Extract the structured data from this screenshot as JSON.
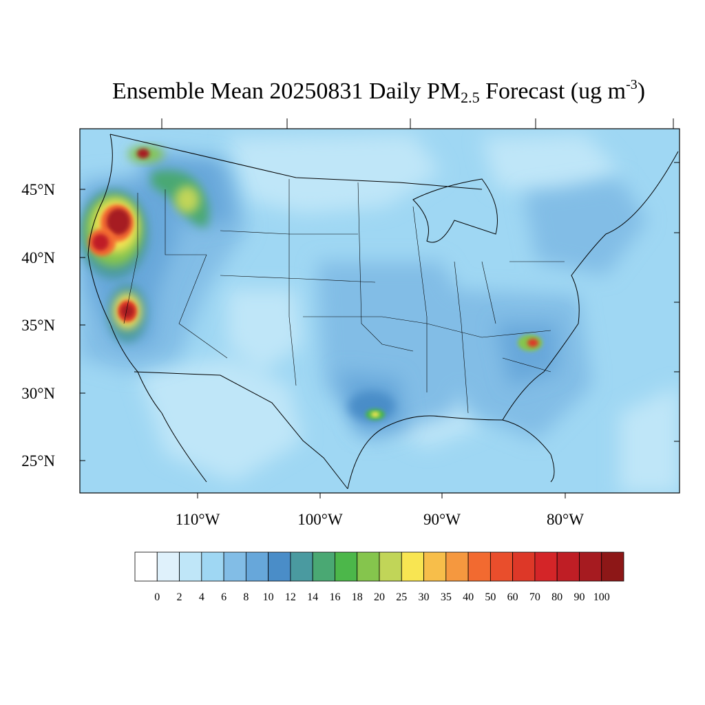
{
  "title": {
    "main": "Ensemble Mean 20250831 Daily PM",
    "subscript": "2.5",
    "after": " Forecast (ug m",
    "superscript": "-3",
    "close": ")"
  },
  "map": {
    "variable": "PM2.5",
    "region": "CONUS",
    "lat_range": [
      22.5,
      49
    ],
    "lon_range": [
      -119.5,
      -70.5
    ],
    "lat_labels": [
      "45°N",
      "40°N",
      "35°N",
      "30°N",
      "25°N"
    ],
    "lon_labels": [
      "110°W",
      "100°W",
      "90°W",
      "80°W"
    ]
  },
  "colorbar": {
    "labels": [
      "0",
      "2",
      "4",
      "6",
      "8",
      "10",
      "12",
      "14",
      "16",
      "18",
      "20",
      "25",
      "30",
      "35",
      "40",
      "50",
      "60",
      "70",
      "80",
      "90",
      "100"
    ],
    "colors": [
      "#ffffff",
      "#dff1fb",
      "#bfe6f8",
      "#9fd7f3",
      "#82bde6",
      "#67a7da",
      "#4a8dc8",
      "#4a9aa0",
      "#4aa873",
      "#4cb74a",
      "#85c54d",
      "#c1d558",
      "#f8e552",
      "#f7be4a",
      "#f5983f",
      "#f26a30",
      "#e94e2c",
      "#dd3828",
      "#d42528",
      "#bf1e25",
      "#a61b20",
      "#8d1717"
    ]
  },
  "plumes": [
    {
      "lat": 42.3,
      "lon": -116.6,
      "level": 100
    },
    {
      "lat": 41.2,
      "lon": -118.2,
      "level": 90
    },
    {
      "lat": 36.1,
      "lon": -115.2,
      "level": 90
    },
    {
      "lat": 47.5,
      "lon": -113.5,
      "level": 80
    },
    {
      "lat": 43.9,
      "lon": -110.7,
      "level": 25
    },
    {
      "lat": 35.7,
      "lon": -82.5,
      "level": 70
    },
    {
      "lat": 28.6,
      "lon": -95.2,
      "level": 30
    }
  ]
}
